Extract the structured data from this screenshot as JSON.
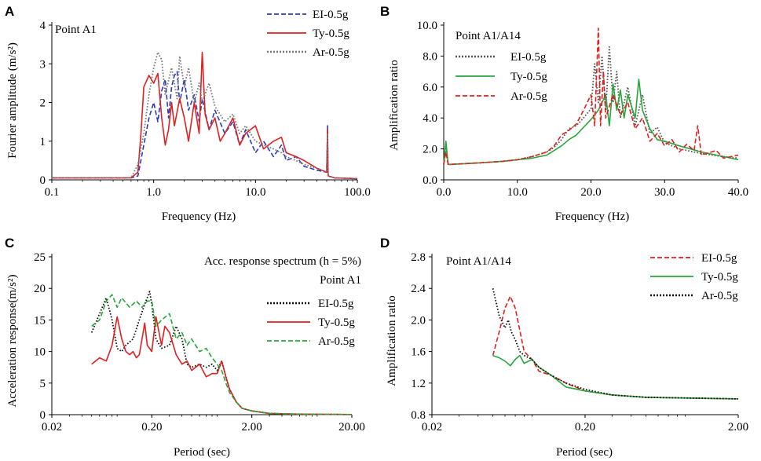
{
  "chart_data": [
    {
      "panel": "A",
      "type": "line",
      "title": "Point A1",
      "xlabel": "Frequency (Hz)",
      "ylabel": "Fourier amplitude (m/s²)",
      "xscale": "log",
      "xlim": [
        0.1,
        100
      ],
      "ylim": [
        0,
        4
      ],
      "xticks": [
        0.1,
        1,
        10,
        100
      ],
      "xtick_labels": [
        "0.1",
        "1.0",
        "10.0",
        "100.0"
      ],
      "yticks": [
        0,
        1,
        2,
        3,
        4
      ],
      "ytick_labels": [
        "0",
        "1",
        "2",
        "3",
        "4"
      ],
      "legend_position": "top-right",
      "series": [
        {
          "name": "EI-0.5g",
          "color": "#2b3bbf",
          "dash": "dashed",
          "x": [
            0.1,
            0.6,
            0.7,
            0.8,
            0.9,
            1.0,
            1.1,
            1.2,
            1.3,
            1.4,
            1.5,
            1.6,
            1.7,
            1.8,
            2.0,
            2.2,
            2.5,
            2.8,
            3.0,
            3.5,
            4.0,
            5.0,
            6.0,
            7.0,
            8.0,
            10.0,
            12.0,
            15.0,
            18.0,
            20.0,
            25.0,
            30.0,
            40.0,
            50.0,
            51.0,
            51.5,
            52.0,
            60.0,
            80.0,
            100.0
          ],
          "y": [
            0.05,
            0.05,
            0.1,
            0.9,
            1.6,
            2.0,
            1.5,
            2.3,
            2.6,
            1.6,
            2.4,
            2.7,
            2.8,
            2.0,
            2.6,
            1.8,
            2.2,
            1.5,
            2.1,
            1.3,
            1.8,
            1.2,
            1.5,
            0.9,
            1.3,
            0.7,
            1.0,
            0.6,
            0.9,
            0.5,
            0.6,
            0.35,
            0.25,
            0.2,
            1.4,
            0.2,
            0.1,
            0.05,
            0.04,
            0.03
          ]
        },
        {
          "name": "Ty-0.5g",
          "color": "#e02020",
          "dash": "solid",
          "x": [
            0.1,
            0.6,
            0.7,
            0.75,
            0.8,
            0.9,
            1.0,
            1.1,
            1.2,
            1.3,
            1.4,
            1.5,
            1.6,
            1.8,
            2.0,
            2.2,
            2.5,
            2.8,
            3.0,
            3.2,
            3.5,
            4.0,
            4.5,
            5.0,
            6.0,
            7.0,
            8.0,
            10.0,
            12.0,
            15.0,
            18.0,
            20.0,
            25.0,
            30.0,
            40.0,
            50.0,
            51.0,
            51.5,
            52.0,
            60.0,
            80.0,
            100.0
          ],
          "y": [
            0.05,
            0.05,
            0.2,
            1.2,
            2.4,
            2.7,
            2.5,
            2.75,
            1.6,
            0.9,
            1.3,
            2.0,
            1.4,
            2.1,
            1.6,
            1.0,
            2.0,
            1.2,
            3.3,
            1.7,
            1.3,
            1.6,
            1.0,
            1.2,
            1.6,
            0.9,
            1.2,
            1.4,
            0.8,
            1.0,
            1.1,
            0.7,
            0.6,
            0.5,
            0.3,
            0.2,
            1.3,
            0.2,
            0.1,
            0.05,
            0.04,
            0.03
          ]
        },
        {
          "name": "Ar-0.5g",
          "color": "#777777",
          "dash": "dotted",
          "x": [
            0.1,
            0.6,
            0.7,
            0.8,
            0.9,
            1.0,
            1.1,
            1.2,
            1.3,
            1.5,
            1.7,
            1.8,
            2.0,
            2.2,
            2.5,
            2.8,
            3.0,
            3.5,
            4.0,
            5.0,
            6.0,
            7.0,
            8.0,
            10.0,
            12.0,
            15.0,
            18.0,
            20.0,
            25.0,
            30.0,
            40.0,
            50.0,
            51.0,
            51.5,
            52.0,
            60.0,
            80.0,
            100.0
          ],
          "y": [
            0.05,
            0.05,
            0.4,
            1.2,
            2.2,
            2.9,
            3.3,
            3.1,
            2.2,
            2.9,
            2.1,
            3.2,
            2.4,
            2.9,
            2.0,
            2.5,
            2.0,
            2.5,
            1.9,
            1.5,
            1.7,
            1.2,
            1.4,
            1.0,
            0.9,
            0.8,
            0.7,
            0.6,
            0.5,
            0.4,
            0.3,
            0.2,
            1.2,
            0.2,
            0.1,
            0.05,
            0.04,
            0.03
          ]
        }
      ]
    },
    {
      "panel": "B",
      "type": "line",
      "title": "Point A1/A14",
      "xlabel": "Frequency (Hz)",
      "ylabel": "Amplification ratio",
      "xlim": [
        0,
        40
      ],
      "ylim": [
        0,
        10
      ],
      "xticks": [
        0,
        10,
        20,
        30,
        40
      ],
      "xtick_labels": [
        "0.0",
        "10.0",
        "20.0",
        "30.0",
        "40.0"
      ],
      "yticks": [
        0,
        2,
        4,
        6,
        8,
        10
      ],
      "ytick_labels": [
        "0.0",
        "2.0",
        "4.0",
        "6.0",
        "8.0",
        "10.0"
      ],
      "legend_position": "top-left",
      "series": [
        {
          "name": "EI-0.5g",
          "color": "#555555",
          "dash": "dotted",
          "x": [
            0.0,
            0.3,
            0.6,
            1,
            3,
            5,
            8,
            10,
            12,
            14,
            15,
            16,
            17,
            18,
            19,
            20,
            20.5,
            21,
            21.5,
            22,
            22.5,
            23,
            23.5,
            24,
            25,
            26,
            27,
            28,
            29,
            30,
            32,
            35,
            38,
            40
          ],
          "y": [
            1.0,
            2.0,
            1.0,
            1.0,
            1.05,
            1.1,
            1.2,
            1.3,
            1.5,
            1.8,
            2.1,
            2.6,
            3.3,
            3.5,
            4.0,
            4.6,
            7.5,
            5.0,
            8.0,
            4.5,
            8.6,
            5.0,
            7.0,
            4.0,
            6.0,
            3.5,
            5.5,
            3.0,
            3.4,
            2.4,
            2.0,
            1.7,
            1.5,
            1.4
          ]
        },
        {
          "name": "Ty-0.5g",
          "color": "#27a63a",
          "dash": "solid",
          "x": [
            0.0,
            0.3,
            0.6,
            1,
            3,
            5,
            8,
            10,
            12,
            14,
            16,
            17,
            18,
            19,
            20,
            21,
            22,
            22.5,
            23,
            23.5,
            24,
            24.5,
            25,
            26,
            26.5,
            27,
            28,
            29,
            30,
            32,
            35,
            38,
            40
          ],
          "y": [
            1.0,
            2.5,
            1.0,
            1.0,
            1.05,
            1.1,
            1.2,
            1.3,
            1.4,
            1.6,
            2.2,
            2.6,
            2.9,
            3.4,
            3.9,
            4.5,
            5.5,
            3.5,
            6.2,
            4.5,
            5.8,
            4.0,
            5.5,
            4.0,
            6.5,
            4.5,
            3.3,
            2.6,
            2.5,
            2.2,
            1.8,
            1.5,
            1.3
          ]
        },
        {
          "name": "Ar-0.5g",
          "color": "#e02020",
          "dash": "dashed",
          "x": [
            0.0,
            0.3,
            0.6,
            1,
            3,
            5,
            8,
            10,
            12,
            14,
            15,
            16,
            17,
            18,
            19,
            20,
            20.5,
            21,
            21.3,
            21.7,
            22,
            23,
            24,
            25,
            26,
            27,
            28,
            29,
            30,
            31,
            32,
            33,
            34,
            34.5,
            35,
            37,
            38,
            40
          ],
          "y": [
            1.0,
            1.8,
            1.0,
            1.0,
            1.05,
            1.1,
            1.2,
            1.3,
            1.5,
            1.8,
            2.2,
            2.9,
            3.2,
            3.6,
            4.5,
            5.5,
            3.5,
            9.8,
            3.5,
            7.0,
            4.0,
            5.5,
            4.2,
            5.0,
            3.3,
            4.0,
            2.5,
            3.0,
            2.2,
            2.6,
            1.8,
            2.3,
            1.9,
            3.5,
            1.6,
            1.9,
            1.4,
            1.6
          ]
        }
      ]
    },
    {
      "panel": "C",
      "type": "line",
      "title": "Acc. response spectrum (h = 5%)",
      "subtitle": "Point A1",
      "xlabel": "Period (sec)",
      "ylabel": "Acceleration response(m/s²)",
      "xscale": "log",
      "xlim": [
        0.02,
        20
      ],
      "ylim": [
        0,
        25
      ],
      "xticks": [
        0.02,
        0.2,
        2,
        20
      ],
      "xtick_labels": [
        "0.02",
        "0.20",
        "2.00",
        "20.00"
      ],
      "yticks": [
        0,
        5,
        10,
        15,
        20,
        25
      ],
      "ytick_labels": [
        "0",
        "5",
        "10",
        "15",
        "20",
        "25"
      ],
      "legend_position": "top-right",
      "series": [
        {
          "name": "EI-0.5g",
          "color": "#111111",
          "dash": "dotted",
          "x": [
            0.05,
            0.06,
            0.07,
            0.08,
            0.09,
            0.1,
            0.11,
            0.13,
            0.15,
            0.17,
            0.19,
            0.2,
            0.22,
            0.25,
            0.3,
            0.35,
            0.4,
            0.45,
            0.5,
            0.6,
            0.7,
            0.8,
            0.9,
            1.0,
            1.1,
            1.2,
            1.4,
            1.6,
            2.0,
            3.0,
            5.0,
            10.0,
            20.0
          ],
          "y": [
            13.0,
            16.0,
            18.5,
            15.0,
            10.5,
            10.0,
            11.0,
            12.0,
            15.0,
            17.5,
            19.5,
            17.5,
            12.0,
            10.5,
            11.0,
            14.0,
            12.0,
            8.0,
            7.5,
            8.0,
            7.5,
            8.0,
            7.0,
            8.5,
            6.0,
            4.0,
            2.0,
            1.0,
            0.6,
            0.2,
            0.1,
            0.05,
            0.03
          ]
        },
        {
          "name": "Ty-0.5g",
          "color": "#e02020",
          "dash": "solid",
          "x": [
            0.05,
            0.06,
            0.07,
            0.08,
            0.09,
            0.1,
            0.11,
            0.12,
            0.13,
            0.14,
            0.15,
            0.17,
            0.18,
            0.2,
            0.22,
            0.25,
            0.27,
            0.3,
            0.35,
            0.4,
            0.45,
            0.5,
            0.6,
            0.7,
            0.8,
            0.9,
            1.0,
            1.1,
            1.2,
            1.4,
            1.6,
            2.0,
            3.0,
            5.0,
            10.0,
            20.0
          ],
          "y": [
            8.0,
            9.0,
            8.5,
            11.0,
            15.5,
            12.0,
            10.0,
            9.5,
            10.0,
            9.0,
            9.5,
            14.5,
            11.0,
            10.0,
            15.5,
            11.0,
            14.0,
            13.0,
            9.5,
            8.0,
            8.5,
            7.0,
            8.0,
            6.0,
            6.5,
            6.5,
            8.5,
            6.0,
            4.0,
            2.0,
            1.0,
            0.6,
            0.2,
            0.1,
            0.05,
            0.03
          ]
        },
        {
          "name": "Ar-0.5g",
          "color": "#27a63a",
          "dash": "dashed",
          "x": [
            0.05,
            0.06,
            0.07,
            0.08,
            0.09,
            0.1,
            0.12,
            0.14,
            0.16,
            0.18,
            0.2,
            0.22,
            0.25,
            0.3,
            0.35,
            0.4,
            0.45,
            0.5,
            0.6,
            0.7,
            0.8,
            0.9,
            1.0,
            1.1,
            1.2,
            1.4,
            1.6,
            2.0,
            3.0,
            5.0,
            10.0,
            20.0
          ],
          "y": [
            14.0,
            15.0,
            18.0,
            19.0,
            17.0,
            18.5,
            17.0,
            18.0,
            17.0,
            18.0,
            18.0,
            14.0,
            15.0,
            16.0,
            12.0,
            13.0,
            11.0,
            12.0,
            10.0,
            10.5,
            9.0,
            8.0,
            7.0,
            5.0,
            3.5,
            2.0,
            1.0,
            0.6,
            0.2,
            0.1,
            0.05,
            0.03
          ]
        }
      ]
    },
    {
      "panel": "D",
      "type": "line",
      "title": "Point A1/A14",
      "xlabel": "Period (sec)",
      "ylabel": "Amplification ratio",
      "xscale": "log",
      "xlim": [
        0.02,
        2
      ],
      "ylim": [
        0.8,
        2.8
      ],
      "xticks": [
        0.02,
        0.2,
        2
      ],
      "xtick_labels": [
        "0.02",
        "0.20",
        "2.00"
      ],
      "yticks": [
        0.8,
        1.2,
        1.6,
        2.0,
        2.4,
        2.8
      ],
      "ytick_labels": [
        "0.8",
        "1.2",
        "1.6",
        "2.0",
        "2.4",
        "2.8"
      ],
      "legend_position": "top-right",
      "series": [
        {
          "name": "EI-0.5g",
          "color": "#e02020",
          "dash": "dashed",
          "x": [
            0.05,
            0.055,
            0.06,
            0.065,
            0.07,
            0.08,
            0.09,
            0.1,
            0.12,
            0.15,
            0.2,
            0.3,
            0.5,
            1.0,
            2.0
          ],
          "y": [
            1.55,
            1.85,
            2.15,
            2.3,
            2.15,
            1.6,
            1.5,
            1.35,
            1.3,
            1.2,
            1.1,
            1.05,
            1.02,
            1.01,
            1.0
          ]
        },
        {
          "name": "Ty-0.5g",
          "color": "#27a63a",
          "dash": "solid",
          "x": [
            0.05,
            0.055,
            0.06,
            0.065,
            0.07,
            0.075,
            0.08,
            0.09,
            0.1,
            0.12,
            0.15,
            0.2,
            0.3,
            0.5,
            1.0,
            2.0
          ],
          "y": [
            1.55,
            1.52,
            1.48,
            1.42,
            1.5,
            1.55,
            1.45,
            1.5,
            1.4,
            1.3,
            1.15,
            1.1,
            1.05,
            1.02,
            1.01,
            1.0
          ]
        },
        {
          "name": "Ar-0.5g",
          "color": "#111111",
          "dash": "dotted",
          "x": [
            0.05,
            0.055,
            0.06,
            0.063,
            0.066,
            0.07,
            0.075,
            0.08,
            0.09,
            0.1,
            0.12,
            0.15,
            0.2,
            0.3,
            0.5,
            1.0,
            2.0
          ],
          "y": [
            2.4,
            2.05,
            1.9,
            2.0,
            1.85,
            1.75,
            1.6,
            1.55,
            1.5,
            1.4,
            1.3,
            1.2,
            1.12,
            1.05,
            1.02,
            1.01,
            1.0
          ]
        }
      ]
    }
  ],
  "panel_letters": [
    "A",
    "B",
    "C",
    "D"
  ],
  "labels": {
    "A": {
      "letter": "A",
      "title": "Point A1",
      "xlabel": "Frequency (Hz)",
      "ylabel": "Fourier amplitude (m/s²)"
    },
    "B": {
      "letter": "B",
      "title": "Point A1/A14",
      "xlabel": "Frequency (Hz)",
      "ylabel": "Amplification ratio"
    },
    "C": {
      "letter": "C",
      "title": "Acc. response spectrum (h = 5%)",
      "subtitle": "Point A1",
      "xlabel": "Period (sec)",
      "ylabel": "Acceleration response(m/s²)"
    },
    "D": {
      "letter": "D",
      "title": "Point A1/A14",
      "xlabel": "Period (sec)",
      "ylabel": "Amplification ratio"
    }
  }
}
